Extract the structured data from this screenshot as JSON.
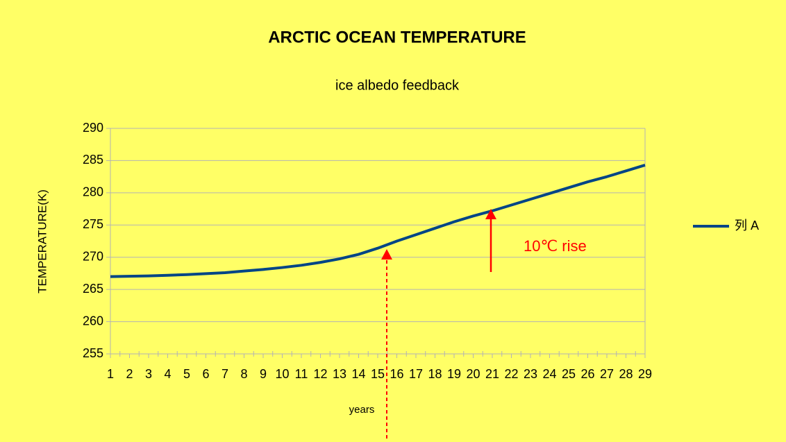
{
  "chart_data": {
    "type": "line",
    "title": "ARCTIC OCEAN TEMPERATURE",
    "subtitle": "ice albedo feedback",
    "x_label": "years",
    "y_label": "TEMPERATURE(K)",
    "annotation": "10℃ rise",
    "categories": [
      "1",
      "2",
      "3",
      "4",
      "5",
      "6",
      "7",
      "8",
      "9",
      "10",
      "11",
      "12",
      "13",
      "14",
      "15",
      "16",
      "17",
      "18",
      "19",
      "20",
      "21",
      "22",
      "23",
      "24",
      "25",
      "26",
      "27",
      "28",
      "29"
    ],
    "series": [
      {
        "name": "列 A",
        "color": "#004586",
        "values": [
          267.0,
          267.05,
          267.1,
          267.2,
          267.3,
          267.45,
          267.6,
          267.85,
          268.1,
          268.4,
          268.75,
          269.2,
          269.75,
          270.45,
          271.4,
          272.5,
          273.5,
          274.5,
          275.5,
          276.4,
          277.2,
          278.1,
          279.0,
          279.9,
          280.8,
          281.7,
          282.5,
          283.4,
          284.3
        ]
      }
    ],
    "ylim": [
      255,
      290
    ],
    "yticks": [
      255,
      260,
      265,
      270,
      275,
      280,
      285,
      290
    ],
    "grid": true,
    "legend": "right"
  }
}
